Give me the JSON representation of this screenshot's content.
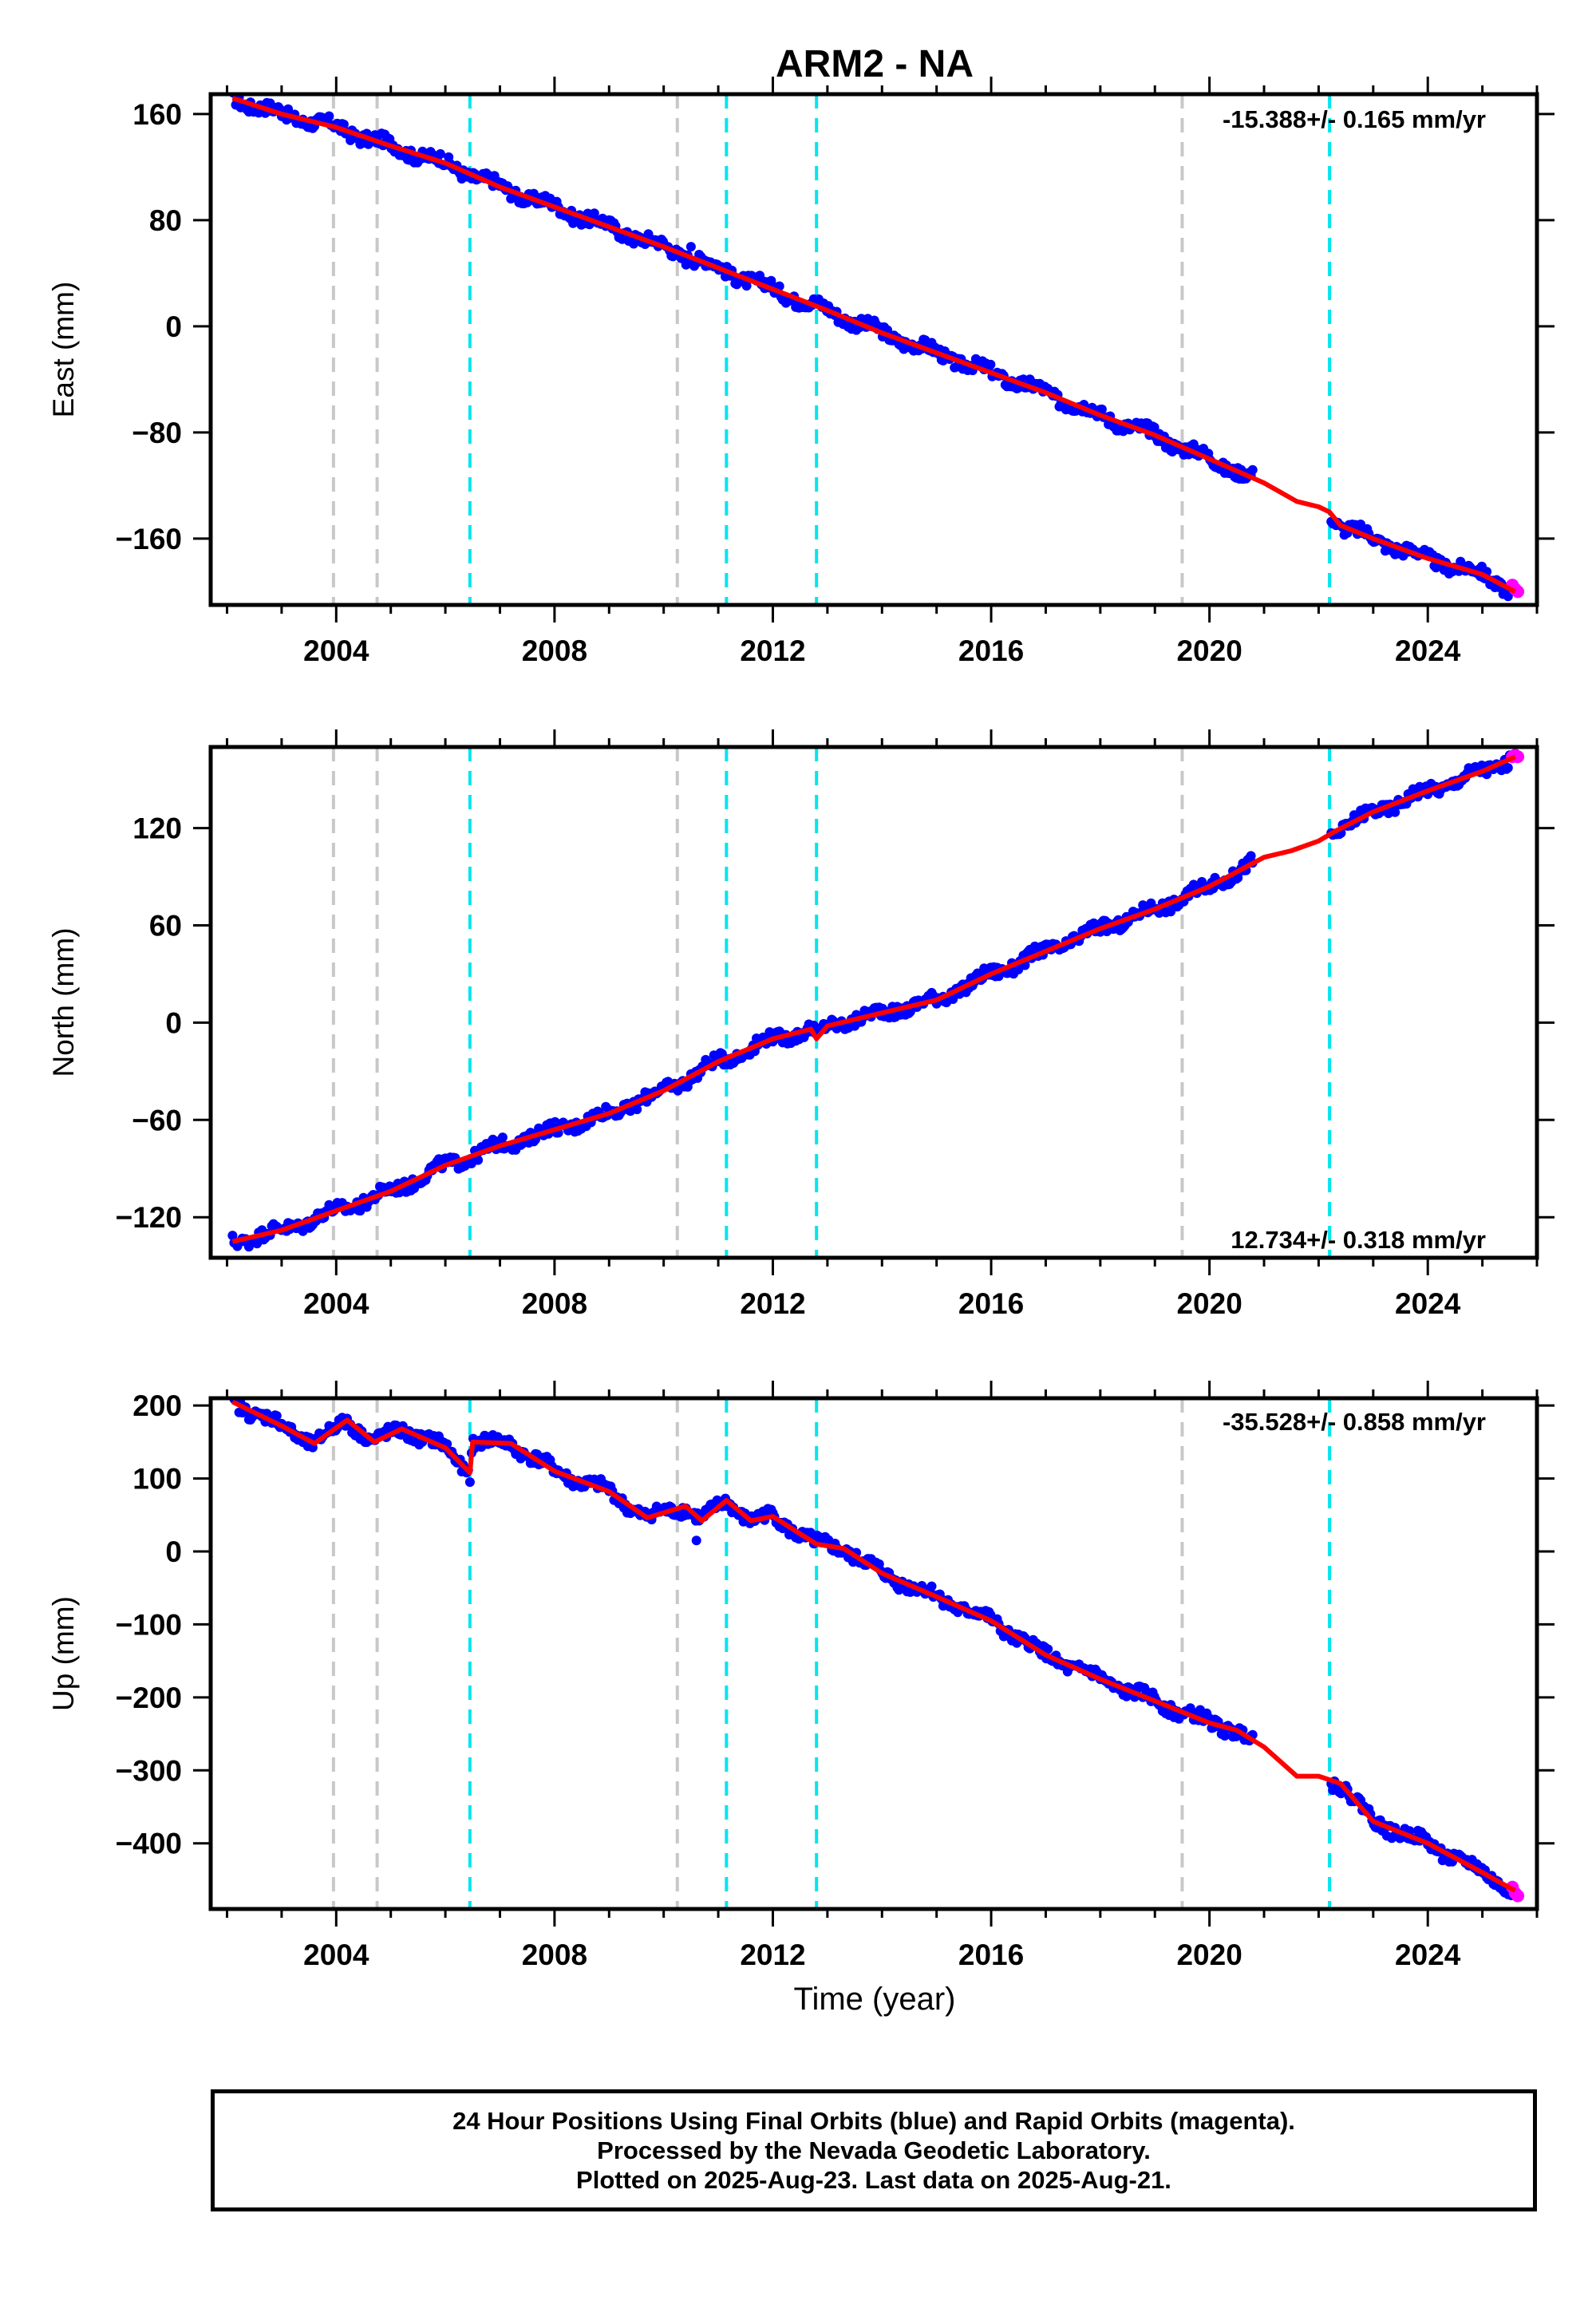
{
  "title": "ARM2 - NA",
  "xlabel": "Time (year)",
  "footer": {
    "line1": "24 Hour Positions Using Final Orbits (blue) and Rapid Orbits (magenta).",
    "line2": "Processed by the Nevada Geodetic Laboratory.",
    "line3": "Plotted on 2025-Aug-23. Last data on 2025-Aug-21."
  },
  "colors": {
    "final": "#0000ff",
    "rapid": "#ff00ff",
    "model": "#ff0000",
    "equipment_change": "#c8c8c8",
    "earthquake": "#00e5ee"
  },
  "chart_data": [
    {
      "type": "scatter",
      "name": "East",
      "ylabel": "East (mm)",
      "rate_label": "-15.388+/- 0.165 mm/yr",
      "xlim": [
        2001.7,
        2026.0
      ],
      "ylim": [
        -210,
        175
      ],
      "yticks": [
        160,
        80,
        0,
        -80,
        -160
      ],
      "xticks": [
        2004,
        2008,
        2012,
        2016,
        2020,
        2024
      ],
      "vlines_gray": [
        2003.95,
        2004.75,
        2010.25,
        2019.5
      ],
      "vlines_cyan": [
        2006.45,
        2011.15,
        2012.8,
        2022.2
      ],
      "gaps": [
        [
          2020.8,
          2022.2
        ]
      ],
      "outliers": [
        [
          2010.5,
          60
        ]
      ],
      "model": [
        [
          2002.1,
          172
        ],
        [
          2003.0,
          160
        ],
        [
          2004.0,
          150
        ],
        [
          2005.0,
          136
        ],
        [
          2006.0,
          123
        ],
        [
          2007.0,
          105
        ],
        [
          2008.0,
          90
        ],
        [
          2009.0,
          75
        ],
        [
          2010.0,
          60
        ],
        [
          2011.0,
          44
        ],
        [
          2012.0,
          28
        ],
        [
          2013.0,
          12
        ],
        [
          2014.0,
          -5
        ],
        [
          2015.0,
          -20
        ],
        [
          2016.0,
          -35
        ],
        [
          2017.0,
          -50
        ],
        [
          2018.0,
          -67
        ],
        [
          2019.0,
          -82
        ],
        [
          2020.0,
          -100
        ],
        [
          2021.0,
          -118
        ],
        [
          2021.6,
          -132
        ],
        [
          2022.0,
          -136
        ],
        [
          2022.2,
          -140
        ],
        [
          2022.4,
          -150
        ],
        [
          2023.0,
          -160
        ],
        [
          2024.0,
          -175
        ],
        [
          2025.0,
          -187
        ],
        [
          2025.6,
          -200
        ]
      ],
      "rapid": [
        [
          2025.55,
          -195
        ],
        [
          2025.6,
          -198
        ],
        [
          2025.65,
          -200
        ]
      ]
    },
    {
      "type": "scatter",
      "name": "North",
      "ylabel": "North (mm)",
      "rate_label": "12.734+/- 0.318 mm/yr",
      "xlim": [
        2001.7,
        2026.0
      ],
      "ylim": [
        -145,
        170
      ],
      "yticks": [
        120,
        60,
        0,
        -60,
        -120
      ],
      "xticks": [
        2004,
        2008,
        2012,
        2016,
        2020,
        2024
      ],
      "vlines_gray": [
        2003.95,
        2004.75,
        2010.25,
        2019.5
      ],
      "vlines_cyan": [
        2006.45,
        2011.15,
        2012.8,
        2022.2
      ],
      "gaps": [
        [
          2020.8,
          2022.2
        ]
      ],
      "outliers": [],
      "model": [
        [
          2002.1,
          -135
        ],
        [
          2003.0,
          -128
        ],
        [
          2004.0,
          -116
        ],
        [
          2005.0,
          -104
        ],
        [
          2006.0,
          -88
        ],
        [
          2007.0,
          -76
        ],
        [
          2008.0,
          -66
        ],
        [
          2009.0,
          -56
        ],
        [
          2010.0,
          -42
        ],
        [
          2011.0,
          -24
        ],
        [
          2012.0,
          -10
        ],
        [
          2012.7,
          -4
        ],
        [
          2012.8,
          -10
        ],
        [
          2013.0,
          -2
        ],
        [
          2014.0,
          6
        ],
        [
          2015.0,
          14
        ],
        [
          2016.0,
          30
        ],
        [
          2017.0,
          44
        ],
        [
          2018.0,
          58
        ],
        [
          2019.0,
          70
        ],
        [
          2020.0,
          84
        ],
        [
          2021.0,
          102
        ],
        [
          2021.5,
          106
        ],
        [
          2022.0,
          112
        ],
        [
          2022.3,
          118
        ],
        [
          2023.0,
          130
        ],
        [
          2024.0,
          143
        ],
        [
          2025.0,
          155
        ],
        [
          2025.6,
          164
        ]
      ],
      "rapid": [
        [
          2025.55,
          164
        ],
        [
          2025.6,
          165
        ],
        [
          2025.65,
          164
        ]
      ]
    },
    {
      "type": "scatter",
      "name": "Up",
      "ylabel": "Up (mm)",
      "rate_label": "-35.528+/- 0.858 mm/yr",
      "xlim": [
        2001.7,
        2026.0
      ],
      "ylim": [
        -490,
        210
      ],
      "yticks": [
        200,
        100,
        0,
        -100,
        -200,
        -300,
        -400
      ],
      "xticks": [
        2004,
        2008,
        2012,
        2016,
        2020,
        2024
      ],
      "vlines_gray": [
        2003.95,
        2004.75,
        2010.25,
        2019.5
      ],
      "vlines_cyan": [
        2006.45,
        2011.15,
        2012.8,
        2022.2
      ],
      "gaps": [
        [
          2020.8,
          2022.2
        ]
      ],
      "outliers": [
        [
          2010.6,
          15
        ]
      ],
      "model": [
        [
          2002.1,
          205
        ],
        [
          2003.0,
          172
        ],
        [
          2003.6,
          148
        ],
        [
          2004.2,
          180
        ],
        [
          2004.7,
          150
        ],
        [
          2005.2,
          168
        ],
        [
          2006.0,
          142
        ],
        [
          2006.45,
          108
        ],
        [
          2006.5,
          150
        ],
        [
          2007.2,
          148
        ],
        [
          2008.0,
          110
        ],
        [
          2009.0,
          82
        ],
        [
          2009.7,
          46
        ],
        [
          2010.4,
          62
        ],
        [
          2010.7,
          42
        ],
        [
          2011.15,
          70
        ],
        [
          2011.6,
          42
        ],
        [
          2012.0,
          48
        ],
        [
          2012.8,
          10
        ],
        [
          2013.3,
          4
        ],
        [
          2014.0,
          -30
        ],
        [
          2015.0,
          -62
        ],
        [
          2016.0,
          -95
        ],
        [
          2017.0,
          -142
        ],
        [
          2018.0,
          -175
        ],
        [
          2019.0,
          -205
        ],
        [
          2020.0,
          -235
        ],
        [
          2020.5,
          -245
        ],
        [
          2021.0,
          -268
        ],
        [
          2021.6,
          -308
        ],
        [
          2022.0,
          -308
        ],
        [
          2022.4,
          -318
        ],
        [
          2023.0,
          -370
        ],
        [
          2024.0,
          -400
        ],
        [
          2025.0,
          -440
        ],
        [
          2025.6,
          -465
        ]
      ],
      "rapid": [
        [
          2025.55,
          -460
        ],
        [
          2025.6,
          -468
        ],
        [
          2025.65,
          -472
        ]
      ]
    }
  ]
}
